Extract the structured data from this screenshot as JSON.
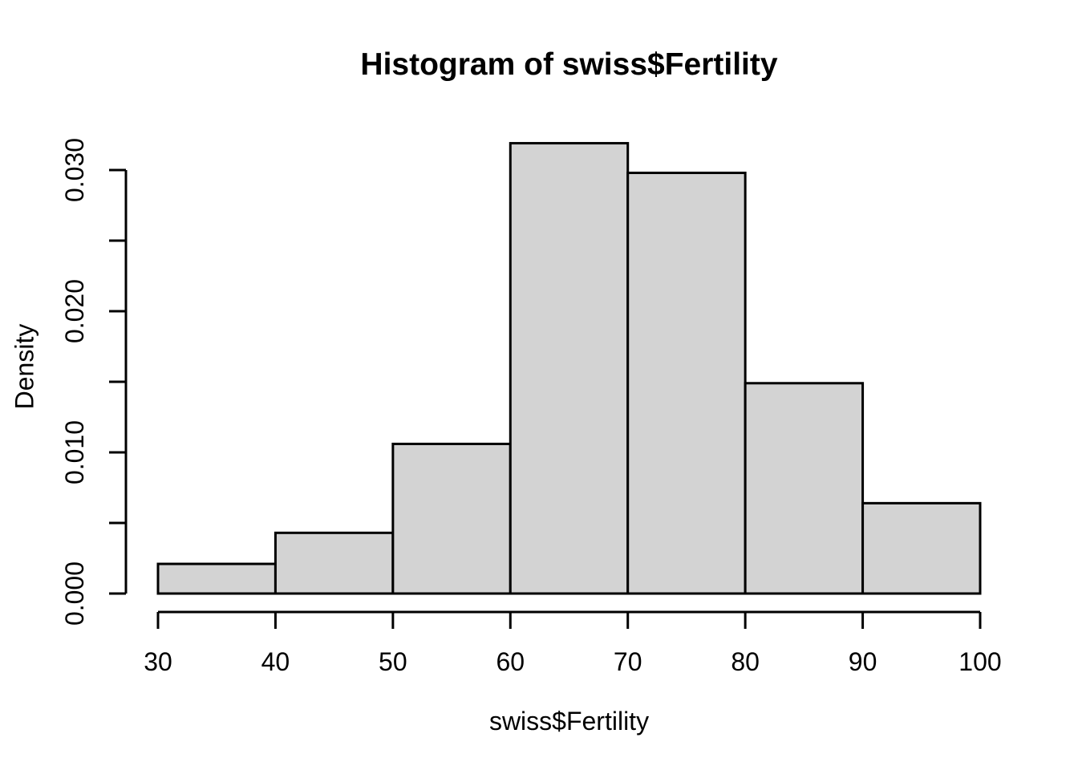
{
  "figure": {
    "background": "#FFFFFF"
  },
  "chart_data": {
    "type": "bar",
    "subtype": "histogram",
    "title": "Histogram of swiss$Fertility",
    "xlabel": "swiss$Fertility",
    "ylabel": "Density",
    "xlim": [
      30,
      100
    ],
    "ylim": [
      0,
      0.032
    ],
    "grid": false,
    "legend": null,
    "bin_edges": [
      30,
      40,
      50,
      60,
      70,
      80,
      90,
      100
    ],
    "densities": [
      0.0021,
      0.0043,
      0.0106,
      0.0319,
      0.0298,
      0.0149,
      0.0064
    ],
    "x_ticks": [
      {
        "value": 30,
        "text": "30"
      },
      {
        "value": 40,
        "text": "40"
      },
      {
        "value": 50,
        "text": "50"
      },
      {
        "value": 60,
        "text": "60"
      },
      {
        "value": 70,
        "text": "70"
      },
      {
        "value": 80,
        "text": "80"
      },
      {
        "value": 90,
        "text": "90"
      },
      {
        "value": 100,
        "text": "100"
      }
    ],
    "y_ticks": [
      {
        "value": 0.0,
        "text": "0.000"
      },
      {
        "value": 0.005,
        "text": ""
      },
      {
        "value": 0.01,
        "text": "0.010"
      },
      {
        "value": 0.015,
        "text": ""
      },
      {
        "value": 0.02,
        "text": "0.020"
      },
      {
        "value": 0.025,
        "text": ""
      },
      {
        "value": 0.03,
        "text": "0.030"
      }
    ],
    "styles": {
      "bar_fill": "#D3D3D3",
      "bar_border": "#000000",
      "axis_color": "#000000",
      "text_color": "#000000"
    }
  }
}
